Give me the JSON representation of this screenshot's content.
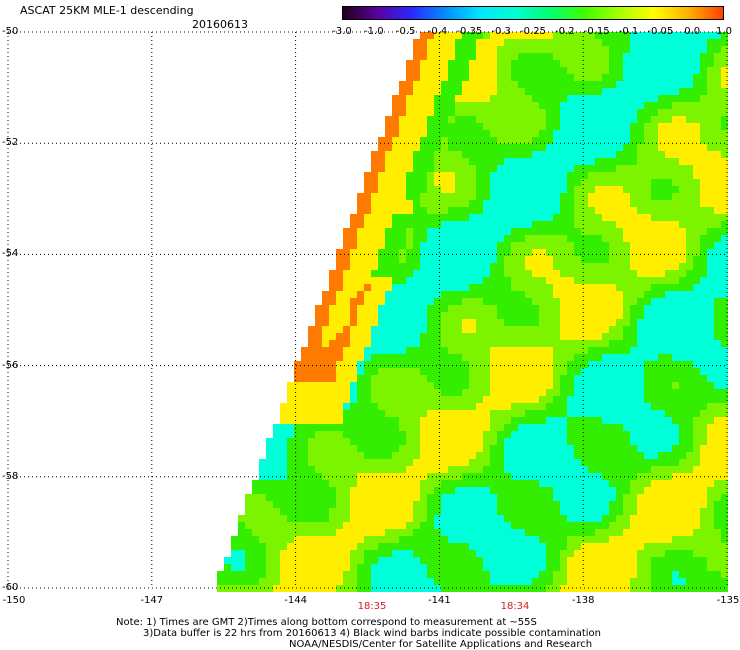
{
  "header": {
    "title": "ASCAT 25KM MLE-1 descending",
    "date": "20160613"
  },
  "colorbar": {
    "tick_labels": [
      "-3.0",
      "-1.0",
      "-0.5",
      "-0.4",
      "-0.35",
      "-0.3",
      "-0.25",
      "-0.2",
      "-0.15",
      "-0.1",
      "-0.05",
      "0.0",
      "1.0"
    ],
    "colors": [
      "#20001a",
      "#5a00a0",
      "#2a2aff",
      "#0090ff",
      "#00e8ff",
      "#00ffd0",
      "#00ff70",
      "#40ff00",
      "#a8ff00",
      "#ffff00",
      "#ffb000",
      "#ff4000"
    ]
  },
  "map": {
    "lat_labels": [
      "-50",
      "-52",
      "-54",
      "-56",
      "-58",
      "-60"
    ],
    "lon_labels": [
      "-150",
      "-147",
      "-144",
      "-141",
      "-138",
      "-135"
    ],
    "lat_range": [
      -60,
      -50
    ],
    "lon_range": [
      -150,
      -135
    ],
    "grid": "dotted",
    "swath_colors": {
      "edge_orange": "#ff7a00",
      "edge_yellow": "#ffee00",
      "green": "#33ee00",
      "cyan": "#00ffd8"
    }
  },
  "times": [
    {
      "label": "18:35",
      "lon": -142.5
    },
    {
      "label": "18:34",
      "lon": -139.5
    }
  ],
  "notes": {
    "line1": "Note: 1) Times are GMT 2)Times along bottom correspond to measurement at ~55S",
    "line2": "3)Data buffer is 22 hrs from 20160613 4) Black wind barbs indicate possible contamination",
    "line3": "NOAA/NESDIS/Center for Satellite Applications and Research"
  }
}
